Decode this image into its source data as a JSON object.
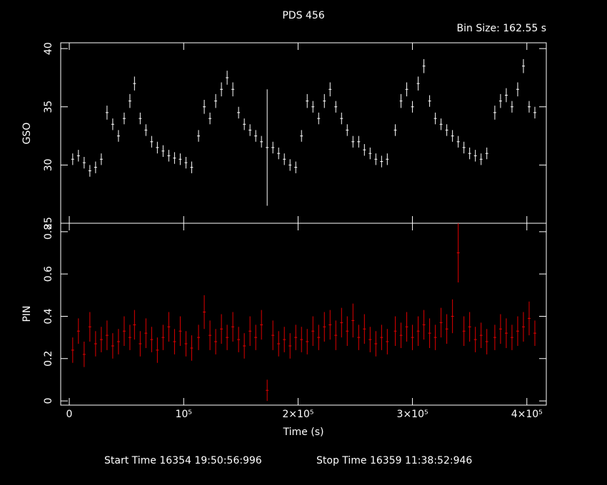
{
  "chart_data": [
    {
      "type": "errorbar",
      "title": "PDS 456",
      "annotation": "Bin Size: 162.55 s",
      "ylabel": "GSO",
      "xlim": [
        -7500,
        417000
      ],
      "xticks": [
        0,
        100000,
        200000,
        300000,
        400000
      ],
      "ylim": [
        25,
        40.5
      ],
      "yticks": [
        25,
        30,
        35,
        40
      ],
      "series": [
        {
          "color": "#ffffff",
          "x": [
            3000,
            8000,
            13000,
            18000,
            23000,
            28000,
            33000,
            38000,
            43000,
            48000,
            53000,
            57000,
            62000,
            67000,
            72000,
            77000,
            82000,
            87000,
            92000,
            97000,
            102000,
            107000,
            113000,
            118000,
            123000,
            128000,
            133000,
            138000,
            143000,
            148000,
            153000,
            158000,
            163000,
            168000,
            173000,
            178000,
            183000,
            188000,
            193000,
            198000,
            203000,
            208000,
            213000,
            218000,
            223000,
            228000,
            233000,
            238000,
            243000,
            248000,
            253000,
            258000,
            263000,
            268000,
            273000,
            278000,
            285000,
            290000,
            295000,
            300000,
            305000,
            310000,
            315000,
            320000,
            325000,
            330000,
            335000,
            340000,
            345000,
            350000,
            355000,
            360000,
            365000,
            372000,
            377000,
            382000,
            387000,
            392000,
            397000,
            402000,
            407000
          ],
          "values": [
            30.5,
            30.8,
            30.2,
            29.5,
            29.8,
            30.5,
            34.5,
            33.5,
            32.5,
            34,
            35.5,
            37,
            34,
            33,
            32,
            31.5,
            31.2,
            30.8,
            30.6,
            30.5,
            30.2,
            29.8,
            32.5,
            35,
            34,
            35.5,
            36.5,
            37.5,
            36.5,
            34.5,
            33.5,
            33,
            32.5,
            32,
            31.5,
            31.5,
            31,
            30.5,
            30,
            29.8,
            32.5,
            35.5,
            35,
            34,
            35.5,
            36.5,
            35,
            34,
            33,
            32,
            32,
            31.3,
            31,
            30.5,
            30.3,
            30.5,
            33,
            35.5,
            36.5,
            35,
            37,
            38.5,
            35.5,
            34,
            33.5,
            33,
            32.5,
            32,
            31.5,
            31,
            30.8,
            30.5,
            31,
            34.5,
            35.5,
            36,
            35,
            36.5,
            38.5,
            35,
            34.5
          ],
          "errors": [
            0.5,
            0.5,
            0.5,
            0.5,
            0.5,
            0.5,
            0.6,
            0.5,
            0.5,
            0.5,
            0.6,
            0.6,
            0.5,
            0.5,
            0.5,
            0.5,
            0.5,
            0.5,
            0.5,
            0.5,
            0.5,
            0.5,
            0.5,
            0.6,
            0.5,
            0.6,
            0.6,
            0.6,
            0.6,
            0.5,
            0.5,
            0.5,
            0.5,
            0.5,
            5,
            0.5,
            0.5,
            0.5,
            0.5,
            0.5,
            0.5,
            0.6,
            0.5,
            0.5,
            0.6,
            0.6,
            0.5,
            0.5,
            0.5,
            0.5,
            0.5,
            0.5,
            0.5,
            0.5,
            0.5,
            0.5,
            0.5,
            0.6,
            0.6,
            0.5,
            0.6,
            0.6,
            0.5,
            0.5,
            0.5,
            0.5,
            0.5,
            0.5,
            0.5,
            0.5,
            0.5,
            0.5,
            0.5,
            0.6,
            0.6,
            0.6,
            0.5,
            0.6,
            0.6,
            0.5,
            0.5
          ]
        }
      ]
    },
    {
      "type": "errorbar",
      "xlabel": "Time (s)",
      "ylabel": "PIN",
      "footer_start": "Start Time 16354 19:50:56:996",
      "footer_stop": "Stop Time 16359 11:38:52:946",
      "xlim": [
        -7500,
        417000
      ],
      "xticks": [
        {
          "value": 0,
          "label": "0"
        },
        {
          "value": 100000,
          "label": "10⁵"
        },
        {
          "value": 200000,
          "label": "2×10⁵"
        },
        {
          "value": 300000,
          "label": "3×10⁵"
        },
        {
          "value": 400000,
          "label": "4×10⁵"
        }
      ],
      "ylim": [
        -0.02,
        0.84
      ],
      "yticks": [
        0,
        0.2,
        0.4,
        0.6,
        0.8
      ],
      "series": [
        {
          "color": "#e00000",
          "x": [
            3000,
            8000,
            13000,
            18000,
            23000,
            28000,
            33000,
            38000,
            43000,
            48000,
            53000,
            57000,
            62000,
            67000,
            72000,
            77000,
            82000,
            87000,
            92000,
            97000,
            102000,
            107000,
            113000,
            118000,
            123000,
            128000,
            133000,
            138000,
            143000,
            148000,
            153000,
            158000,
            163000,
            168000,
            173000,
            178000,
            183000,
            188000,
            193000,
            198000,
            203000,
            208000,
            213000,
            218000,
            223000,
            228000,
            233000,
            238000,
            243000,
            248000,
            253000,
            258000,
            263000,
            268000,
            273000,
            278000,
            285000,
            290000,
            295000,
            300000,
            305000,
            310000,
            315000,
            320000,
            325000,
            330000,
            335000,
            340000,
            345000,
            350000,
            355000,
            360000,
            365000,
            372000,
            377000,
            382000,
            387000,
            392000,
            397000,
            402000,
            407000
          ],
          "values": [
            0.24,
            0.33,
            0.22,
            0.35,
            0.27,
            0.29,
            0.31,
            0.26,
            0.28,
            0.33,
            0.3,
            0.36,
            0.27,
            0.32,
            0.29,
            0.24,
            0.3,
            0.35,
            0.28,
            0.33,
            0.27,
            0.25,
            0.3,
            0.42,
            0.31,
            0.28,
            0.34,
            0.3,
            0.35,
            0.29,
            0.26,
            0.33,
            0.3,
            0.36,
            0.05,
            0.31,
            0.27,
            0.29,
            0.26,
            0.3,
            0.29,
            0.28,
            0.33,
            0.3,
            0.35,
            0.36,
            0.31,
            0.37,
            0.33,
            0.38,
            0.3,
            0.34,
            0.29,
            0.27,
            0.3,
            0.28,
            0.33,
            0.31,
            0.35,
            0.3,
            0.33,
            0.36,
            0.32,
            0.3,
            0.37,
            0.34,
            0.4,
            0.7,
            0.33,
            0.35,
            0.29,
            0.31,
            0.28,
            0.3,
            0.34,
            0.32,
            0.3,
            0.33,
            0.35,
            0.39,
            0.32
          ],
          "errors": [
            0.06,
            0.06,
            0.06,
            0.07,
            0.06,
            0.06,
            0.07,
            0.06,
            0.06,
            0.07,
            0.06,
            0.07,
            0.06,
            0.07,
            0.06,
            0.06,
            0.06,
            0.07,
            0.06,
            0.07,
            0.06,
            0.06,
            0.06,
            0.08,
            0.07,
            0.06,
            0.07,
            0.06,
            0.07,
            0.06,
            0.06,
            0.07,
            0.06,
            0.07,
            0.05,
            0.07,
            0.06,
            0.06,
            0.06,
            0.06,
            0.06,
            0.06,
            0.07,
            0.06,
            0.07,
            0.07,
            0.07,
            0.07,
            0.07,
            0.08,
            0.06,
            0.07,
            0.06,
            0.06,
            0.06,
            0.06,
            0.07,
            0.06,
            0.07,
            0.06,
            0.07,
            0.07,
            0.07,
            0.06,
            0.07,
            0.07,
            0.08,
            0.14,
            0.07,
            0.07,
            0.06,
            0.06,
            0.06,
            0.06,
            0.07,
            0.07,
            0.06,
            0.07,
            0.07,
            0.08,
            0.06
          ]
        }
      ]
    }
  ]
}
